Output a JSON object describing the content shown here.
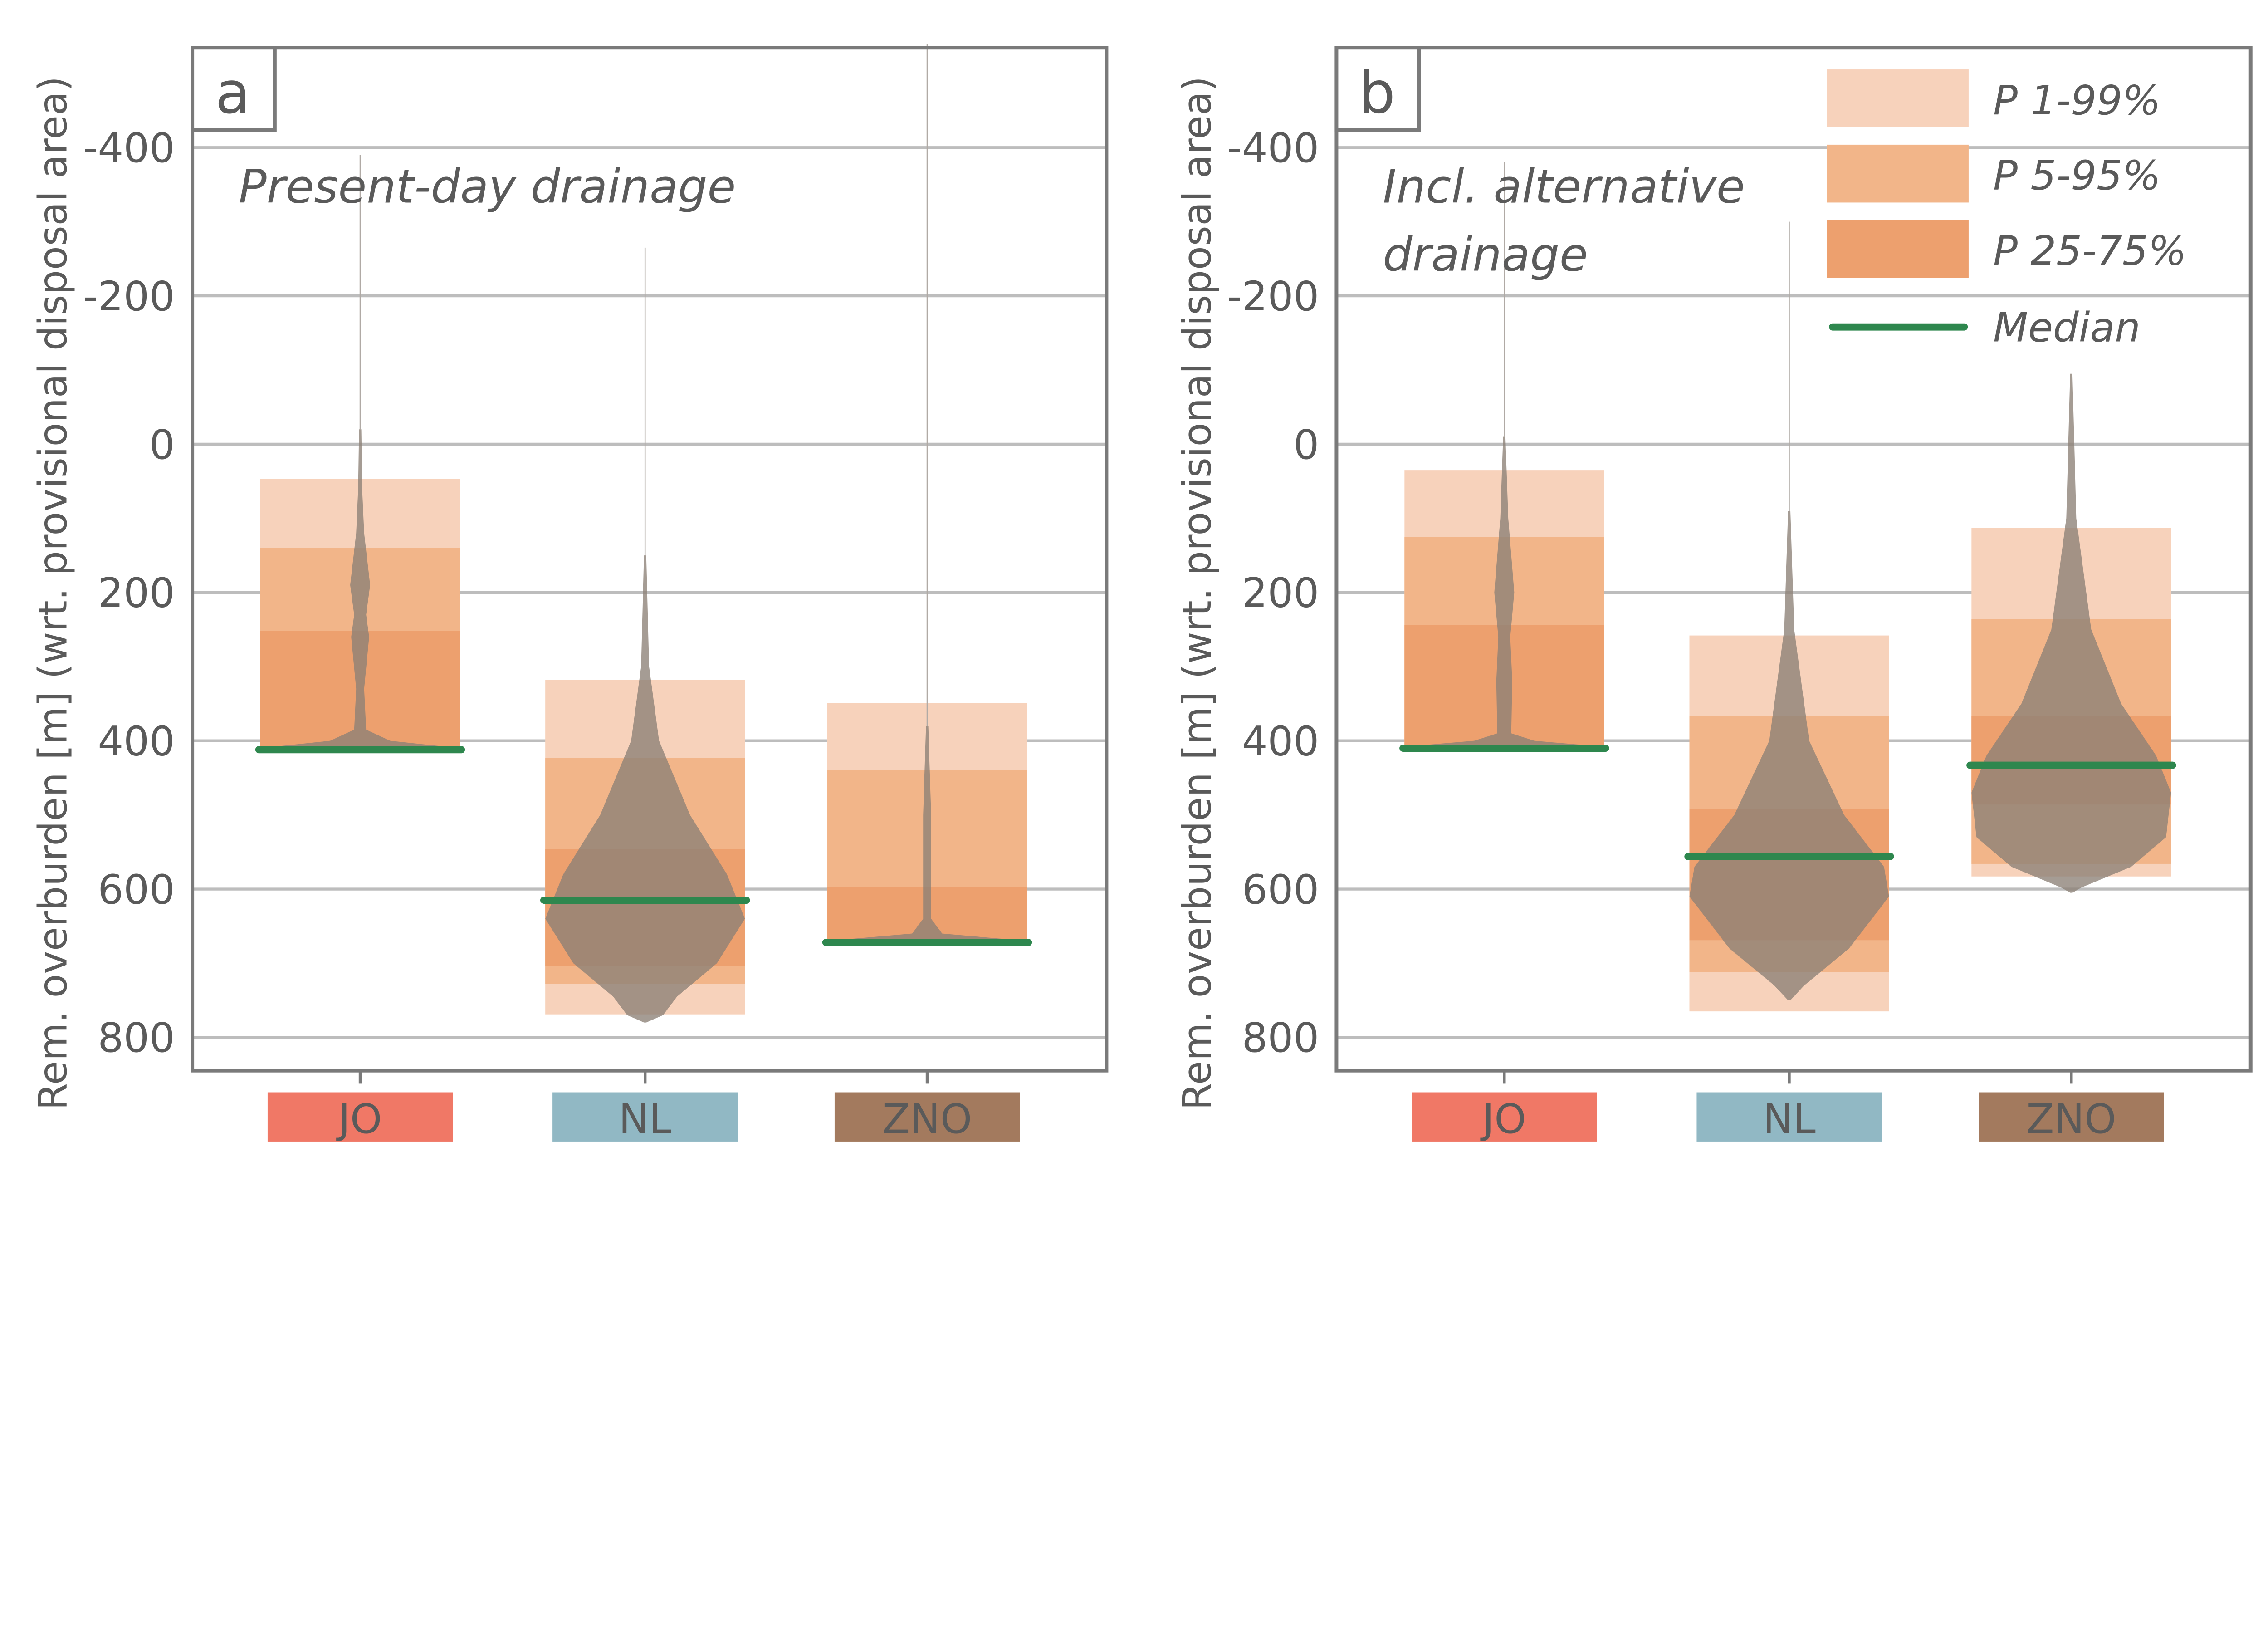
{
  "chart_data": {
    "type": "violin",
    "ylabel": "Rem. overburden [m] (wrt. provisional disposal area)",
    "yticks": [
      "-400",
      "-200",
      "0",
      "200",
      "400",
      "600",
      "800"
    ],
    "ytick_values": [
      -400,
      -200,
      0,
      200,
      400,
      600,
      800
    ],
    "ylim": [
      -540,
      890
    ],
    "y_inverted": true,
    "grid": true,
    "categories": [
      "JO",
      "NL",
      "ZNO"
    ],
    "category_colors": {
      "JO": "#f07866",
      "NL": "#91b8c4",
      "ZNO": "#a37a5e"
    },
    "colors": {
      "p1_99": "#f7d2bb",
      "p5_95": "#f2b589",
      "p25_75": "#eda06e",
      "median": "#2e874e",
      "violin": "#8c8076",
      "text": "#5a5a5a",
      "axis": "#7a7a7a",
      "grid": "#bdbdbd"
    },
    "legend": {
      "placement": "top-right",
      "entries": [
        "P 1-99%",
        "P 5-95%",
        "P 25-75%",
        "Median"
      ]
    },
    "panels": [
      {
        "label": "a",
        "annotation": [
          "Present-day drainage"
        ],
        "groups": [
          {
            "category": "JO",
            "p1": 47,
            "p5": 140,
            "p25": 252,
            "median": 412,
            "p75": 412,
            "p95": 412,
            "p99": 412,
            "tail_min": -390,
            "density": [
              [
                -20,
                0
              ],
              [
                60,
                0.02
              ],
              [
                120,
                0.04
              ],
              [
                190,
                0.1
              ],
              [
                230,
                0.06
              ],
              [
                260,
                0.09
              ],
              [
                330,
                0.04
              ],
              [
                385,
                0.06
              ],
              [
                400,
                0.3
              ],
              [
                410,
                1.0
              ],
              [
                415,
                0
              ]
            ]
          },
          {
            "category": "NL",
            "p1": 318,
            "p5": 423,
            "p25": 546,
            "median": 615,
            "p75": 704,
            "p95": 728,
            "p99": 769,
            "tail_min": -265,
            "density": [
              [
                150,
                0
              ],
              [
                300,
                0.04
              ],
              [
                400,
                0.14
              ],
              [
                500,
                0.45
              ],
              [
                580,
                0.82
              ],
              [
                640,
                1.0
              ],
              [
                700,
                0.72
              ],
              [
                745,
                0.32
              ],
              [
                770,
                0.18
              ],
              [
                780,
                0
              ]
            ]
          },
          {
            "category": "ZNO",
            "p1": 349,
            "p5": 439,
            "p25": 597,
            "median": 672,
            "p75": 672,
            "p95": 672,
            "p99": 675,
            "tail_min": -540,
            "density": [
              [
                380,
                0
              ],
              [
                500,
                0.04
              ],
              [
                640,
                0.04
              ],
              [
                660,
                0.15
              ],
              [
                670,
                1.0
              ],
              [
                675,
                0
              ]
            ]
          }
        ]
      },
      {
        "label": "b",
        "annotation": [
          "Incl. alternative",
          "drainage"
        ],
        "groups": [
          {
            "category": "JO",
            "p1": 35,
            "p5": 125,
            "p25": 244,
            "median": 410,
            "p75": 410,
            "p95": 410,
            "p99": 410,
            "tail_min": -380,
            "density": [
              [
                -10,
                0
              ],
              [
                100,
                0.04
              ],
              [
                200,
                0.1
              ],
              [
                260,
                0.06
              ],
              [
                320,
                0.08
              ],
              [
                390,
                0.07
              ],
              [
                400,
                0.3
              ],
              [
                408,
                1.0
              ],
              [
                412,
                0
              ]
            ]
          },
          {
            "category": "NL",
            "p1": 258,
            "p5": 367,
            "p25": 492,
            "median": 556,
            "p75": 669,
            "p95": 712,
            "p99": 765,
            "tail_min": -300,
            "density": [
              [
                90,
                0
              ],
              [
                250,
                0.05
              ],
              [
                400,
                0.2
              ],
              [
                500,
                0.55
              ],
              [
                570,
                0.95
              ],
              [
                610,
                1.0
              ],
              [
                680,
                0.6
              ],
              [
                730,
                0.15
              ],
              [
                750,
                0
              ]
            ]
          },
          {
            "category": "ZNO",
            "p1": 113,
            "p5": 236,
            "p25": 367,
            "median": 433,
            "p75": 486,
            "p95": 566,
            "p99": 583,
            "tail_min": -95,
            "density": [
              [
                -95,
                0
              ],
              [
                100,
                0.05
              ],
              [
                250,
                0.2
              ],
              [
                350,
                0.5
              ],
              [
                420,
                0.85
              ],
              [
                470,
                1.0
              ],
              [
                530,
                0.95
              ],
              [
                570,
                0.6
              ],
              [
                598,
                0.1
              ],
              [
                605,
                0
              ]
            ]
          }
        ]
      }
    ]
  }
}
